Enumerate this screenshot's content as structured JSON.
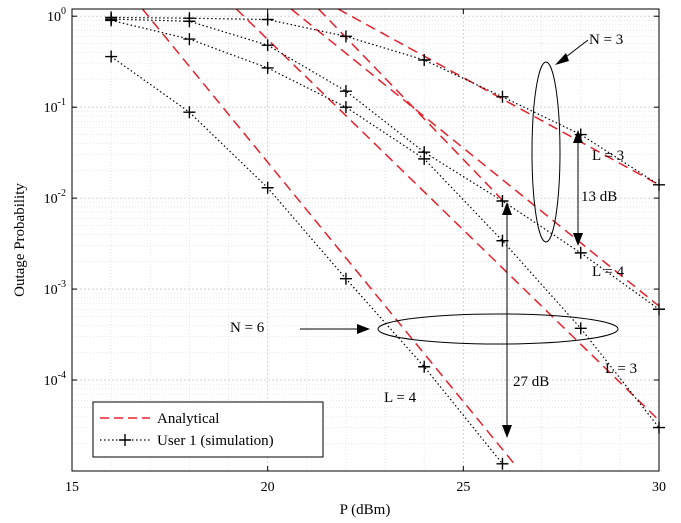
{
  "chart_data": {
    "type": "line",
    "title": "",
    "xlabel": "P (dBm)",
    "ylabel": "Outage Probability",
    "xlim": [
      15,
      30
    ],
    "ylim": [
      1e-05,
      1.2
    ],
    "yscale": "log",
    "grid": true,
    "legend_position": "bottom-left",
    "x_ticks": [
      15,
      20,
      25,
      30
    ],
    "x_tick_labels": [
      "15",
      "20",
      "25",
      "30"
    ],
    "y_ticks": [
      1,
      0.1,
      0.01,
      0.001,
      0.0001
    ],
    "y_tick_labels": [
      {
        "base": "10",
        "exp": "0"
      },
      {
        "base": "10",
        "exp": "-1"
      },
      {
        "base": "10",
        "exp": "-2"
      },
      {
        "base": "10",
        "exp": "-3"
      },
      {
        "base": "10",
        "exp": "-4"
      }
    ],
    "legend": [
      {
        "label": "Analytical",
        "style": "dashed",
        "color": "#e8202a"
      },
      {
        "label": "User 1 (simulation)",
        "style": "dotted-marker",
        "color": "#000000"
      }
    ],
    "analytical_lines": [
      {
        "x": [
          19.2,
          30
        ],
        "y": [
          1.2,
          3.6e-05
        ]
      },
      {
        "x": [
          20.6,
          30
        ],
        "y": [
          1.2,
          0.00065
        ]
      },
      {
        "x": [
          21.8,
          30
        ],
        "y": [
          1.2,
          0.014
        ]
      },
      {
        "x": [
          16.8,
          26.3
        ],
        "y": [
          1.2,
          1.2e-05
        ]
      },
      {
        "x": [
          21.3,
          26.0
        ],
        "y": [
          1.2,
          0.0095
        ]
      }
    ],
    "simulation_series": [
      {
        "x": [
          16,
          18,
          20,
          22,
          24,
          26,
          28,
          30
        ],
        "y": [
          0.97,
          0.95,
          0.92,
          0.6,
          0.33,
          0.13,
          0.05,
          0.014
        ]
      },
      {
        "x": [
          16,
          18,
          20,
          22,
          24,
          26,
          28,
          30
        ],
        "y": [
          0.93,
          0.88,
          0.48,
          0.15,
          0.032,
          0.0093,
          0.0025,
          0.0006
        ]
      },
      {
        "x": [
          16,
          18,
          20,
          22,
          24,
          26,
          28,
          30
        ],
        "y": [
          0.9,
          0.56,
          0.27,
          0.1,
          0.027,
          0.0034,
          0.00037,
          3e-05
        ]
      },
      {
        "x": [
          16,
          18,
          20,
          22,
          24,
          26
        ],
        "y": [
          0.36,
          0.088,
          0.013,
          0.0013,
          0.00014,
          1.2e-05
        ]
      }
    ],
    "annotations": [
      {
        "text": "N = 3"
      },
      {
        "text": "N = 6"
      },
      {
        "text": "L = 3"
      },
      {
        "text": "L = 4"
      },
      {
        "text": "L = 3"
      },
      {
        "text": "L = 4"
      },
      {
        "text": "13 dB"
      },
      {
        "text": "27 dB"
      }
    ]
  }
}
